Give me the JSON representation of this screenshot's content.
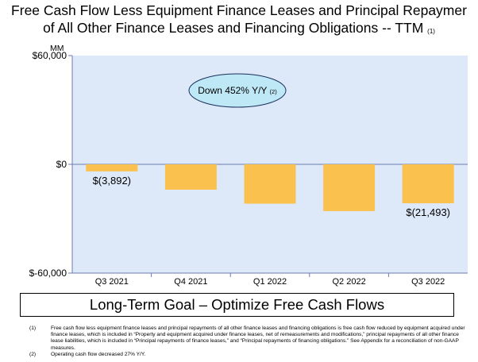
{
  "title": {
    "line1": "Free Cash Flow Less Equipment Finance Leases and Principal Repaymer",
    "line2": "of All Other Finance Leases and Financing Obligations -- TTM",
    "note_ref": "(1)"
  },
  "chart_data": {
    "type": "bar",
    "unit_label": "MM",
    "categories": [
      "Q3 2021",
      "Q4 2021",
      "Q1 2022",
      "Q2 2022",
      "Q3 2022"
    ],
    "values": [
      -3892,
      -14000,
      -21700,
      -25800,
      -21493
    ],
    "data_labels": [
      "$(3,892)",
      "",
      "",
      "",
      "$(21,493)"
    ],
    "ylim": [
      -60000,
      60000
    ],
    "yticks": [
      {
        "value": 60000,
        "label": "$60,000"
      },
      {
        "value": 0,
        "label": "$0"
      },
      {
        "value": -60000,
        "label": "$-60,000"
      }
    ],
    "bar_color": "#fbc14f",
    "plot_background": "#dde9f8",
    "axis_color": "#6b7bb0",
    "callout": {
      "text": "Down 452% Y/Y",
      "note_ref": "(2)",
      "fill": "#bfe8f7",
      "border": "#1a2f5a"
    }
  },
  "goal_box": {
    "text": "Long-Term Goal – Optimize Free Cash Flows"
  },
  "footnotes": [
    {
      "num": "(1)",
      "text": "Free cash flow less equipment finance leases and principal repayments of all other finance leases and financing obligations is free cash flow reduced by equipment acquired under finance leases, which is included in “Property and equipment acquired under finance leases, net of remeasurements and modifications,” principal repayments of all other finance lease liabilities, which is included in “Principal repayments of finance leases,” and “Principal repayments of financing obligations.” See Appendix for a reconciliation of non-GAAP measures."
    },
    {
      "num": "(2)",
      "text": "Operating cash flow decreased 27% Y/Y."
    }
  ]
}
